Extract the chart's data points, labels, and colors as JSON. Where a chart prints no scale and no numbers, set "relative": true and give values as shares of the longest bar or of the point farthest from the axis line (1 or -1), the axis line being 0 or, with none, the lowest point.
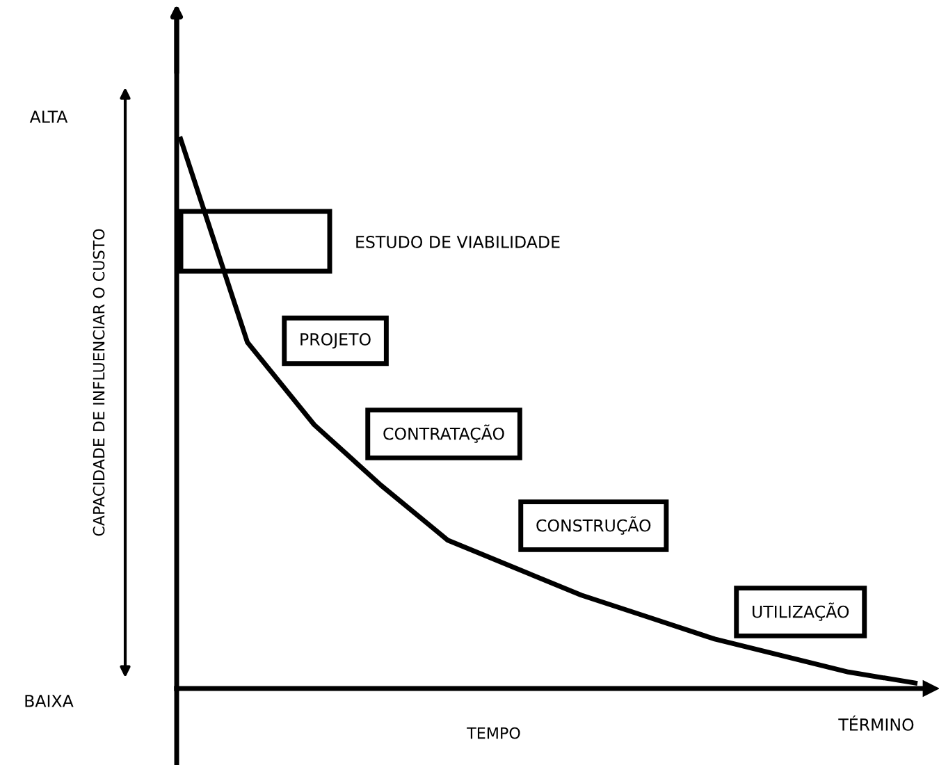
{
  "chart_data": {
    "type": "line",
    "relative": true,
    "xlabel": "TEMPO",
    "ylabel": "CAPACIDADE DE INFLUENCIAR O CUSTO",
    "categories": [
      null,
      null,
      null,
      null,
      null,
      null,
      null,
      null,
      null,
      null,
      null,
      null
    ],
    "series": [
      {
        "color": "#000000",
        "values": [
          1.0,
          0.63,
          0.48,
          0.37,
          0.27,
          0.22,
          0.17,
          0.13,
          0.09,
          0.06,
          0.03,
          0.01
        ]
      }
    ],
    "annotations": [
      "ESTUDO DE VIABILIDADE",
      "PROJETO",
      "CONTRATAÇÃO",
      "CONSTRUÇÃO",
      "UTILIZAÇÃO",
      "ALTA",
      "BAIXA",
      "TÉRMINO"
    ],
    "grid": false,
    "marker": "none",
    "line_style": "solid"
  }
}
